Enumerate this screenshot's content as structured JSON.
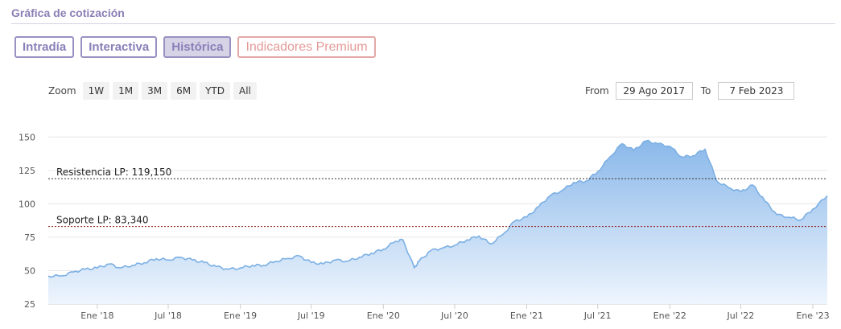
{
  "header": {
    "title": "Gráfica de cotización"
  },
  "tabs": [
    {
      "label": "Intradía",
      "active": false
    },
    {
      "label": "Interactiva",
      "active": false
    },
    {
      "label": "Histórica",
      "active": true
    },
    {
      "label": "Indicadores Premium",
      "active": false
    }
  ],
  "zoom": {
    "label": "Zoom",
    "buttons": [
      "1W",
      "1M",
      "3M",
      "6M",
      "YTD",
      "All"
    ]
  },
  "range": {
    "from_label": "From",
    "from_value": "29 Ago 2017",
    "to_label": "To",
    "to_value": "7 Feb 2023"
  },
  "colors": {
    "line": "#7cb0e4",
    "fill_top": "#8ab8ea",
    "fill_bottom": "#eef5fd",
    "resistance": "#333333",
    "support": "#8b1a1a"
  },
  "chart_data": {
    "type": "area",
    "title": "",
    "xlabel": "",
    "ylabel": "",
    "ylim": [
      25,
      155
    ],
    "yticks": [
      25,
      50,
      75,
      100,
      125,
      150
    ],
    "xlim": [
      "2017-08-29",
      "2023-02-07"
    ],
    "xticks": [
      {
        "date": "2018-01-01",
        "label": "Ene '18"
      },
      {
        "date": "2018-07-01",
        "label": "Jul '18"
      },
      {
        "date": "2019-01-01",
        "label": "Ene '19"
      },
      {
        "date": "2019-07-01",
        "label": "Jul '19"
      },
      {
        "date": "2020-01-01",
        "label": "Ene '20"
      },
      {
        "date": "2020-07-01",
        "label": "Jul '20"
      },
      {
        "date": "2021-01-01",
        "label": "Ene '21"
      },
      {
        "date": "2021-07-01",
        "label": "Jul '21"
      },
      {
        "date": "2022-01-01",
        "label": "Ene '22"
      },
      {
        "date": "2022-07-01",
        "label": "Jul '22"
      },
      {
        "date": "2023-01-01",
        "label": "Ene '23"
      }
    ],
    "grid": true,
    "series": [
      {
        "points": [
          [
            "2017-08-29",
            46
          ],
          [
            "2017-10-01",
            46
          ],
          [
            "2017-11-01",
            49
          ],
          [
            "2017-12-01",
            51
          ],
          [
            "2018-01-01",
            52
          ],
          [
            "2018-02-01",
            55
          ],
          [
            "2018-03-01",
            52
          ],
          [
            "2018-04-01",
            54
          ],
          [
            "2018-05-01",
            56
          ],
          [
            "2018-06-01",
            59
          ],
          [
            "2018-07-01",
            58
          ],
          [
            "2018-08-01",
            60
          ],
          [
            "2018-09-01",
            58
          ],
          [
            "2018-10-01",
            56
          ],
          [
            "2018-11-01",
            53
          ],
          [
            "2018-12-01",
            51
          ],
          [
            "2019-01-01",
            52
          ],
          [
            "2019-02-01",
            54
          ],
          [
            "2019-03-01",
            54
          ],
          [
            "2019-04-01",
            57
          ],
          [
            "2019-05-01",
            59
          ],
          [
            "2019-06-01",
            61
          ],
          [
            "2019-07-01",
            56
          ],
          [
            "2019-08-01",
            55
          ],
          [
            "2019-09-01",
            58
          ],
          [
            "2019-10-01",
            57
          ],
          [
            "2019-11-01",
            60
          ],
          [
            "2019-12-01",
            63
          ],
          [
            "2020-01-01",
            66
          ],
          [
            "2020-02-01",
            72
          ],
          [
            "2020-02-20",
            73
          ],
          [
            "2020-03-20",
            52
          ],
          [
            "2020-04-01",
            57
          ],
          [
            "2020-05-01",
            65
          ],
          [
            "2020-06-01",
            67
          ],
          [
            "2020-07-01",
            69
          ],
          [
            "2020-08-01",
            73
          ],
          [
            "2020-09-01",
            76
          ],
          [
            "2020-10-01",
            70
          ],
          [
            "2020-11-01",
            77
          ],
          [
            "2020-12-01",
            87
          ],
          [
            "2021-01-01",
            90
          ],
          [
            "2021-02-01",
            98
          ],
          [
            "2021-03-01",
            106
          ],
          [
            "2021-04-01",
            110
          ],
          [
            "2021-05-01",
            116
          ],
          [
            "2021-06-01",
            117
          ],
          [
            "2021-07-01",
            124
          ],
          [
            "2021-08-01",
            135
          ],
          [
            "2021-09-01",
            145
          ],
          [
            "2021-10-01",
            140
          ],
          [
            "2021-11-01",
            147
          ],
          [
            "2021-12-01",
            145
          ],
          [
            "2022-01-01",
            143
          ],
          [
            "2022-02-01",
            135
          ],
          [
            "2022-03-01",
            136
          ],
          [
            "2022-04-01",
            141
          ],
          [
            "2022-05-01",
            117
          ],
          [
            "2022-06-01",
            112
          ],
          [
            "2022-07-01",
            109
          ],
          [
            "2022-08-01",
            114
          ],
          [
            "2022-09-01",
            102
          ],
          [
            "2022-10-01",
            92
          ],
          [
            "2022-11-01",
            90
          ],
          [
            "2022-12-01",
            88
          ],
          [
            "2023-01-01",
            96
          ],
          [
            "2023-02-07",
            106
          ]
        ]
      }
    ],
    "reference_lines": [
      {
        "label": "Resistencia LP: 119,150",
        "value": 119.15,
        "style": "dashed"
      },
      {
        "label": "Soporte LP: 83,340",
        "value": 83.34,
        "style": "dashed"
      }
    ]
  }
}
